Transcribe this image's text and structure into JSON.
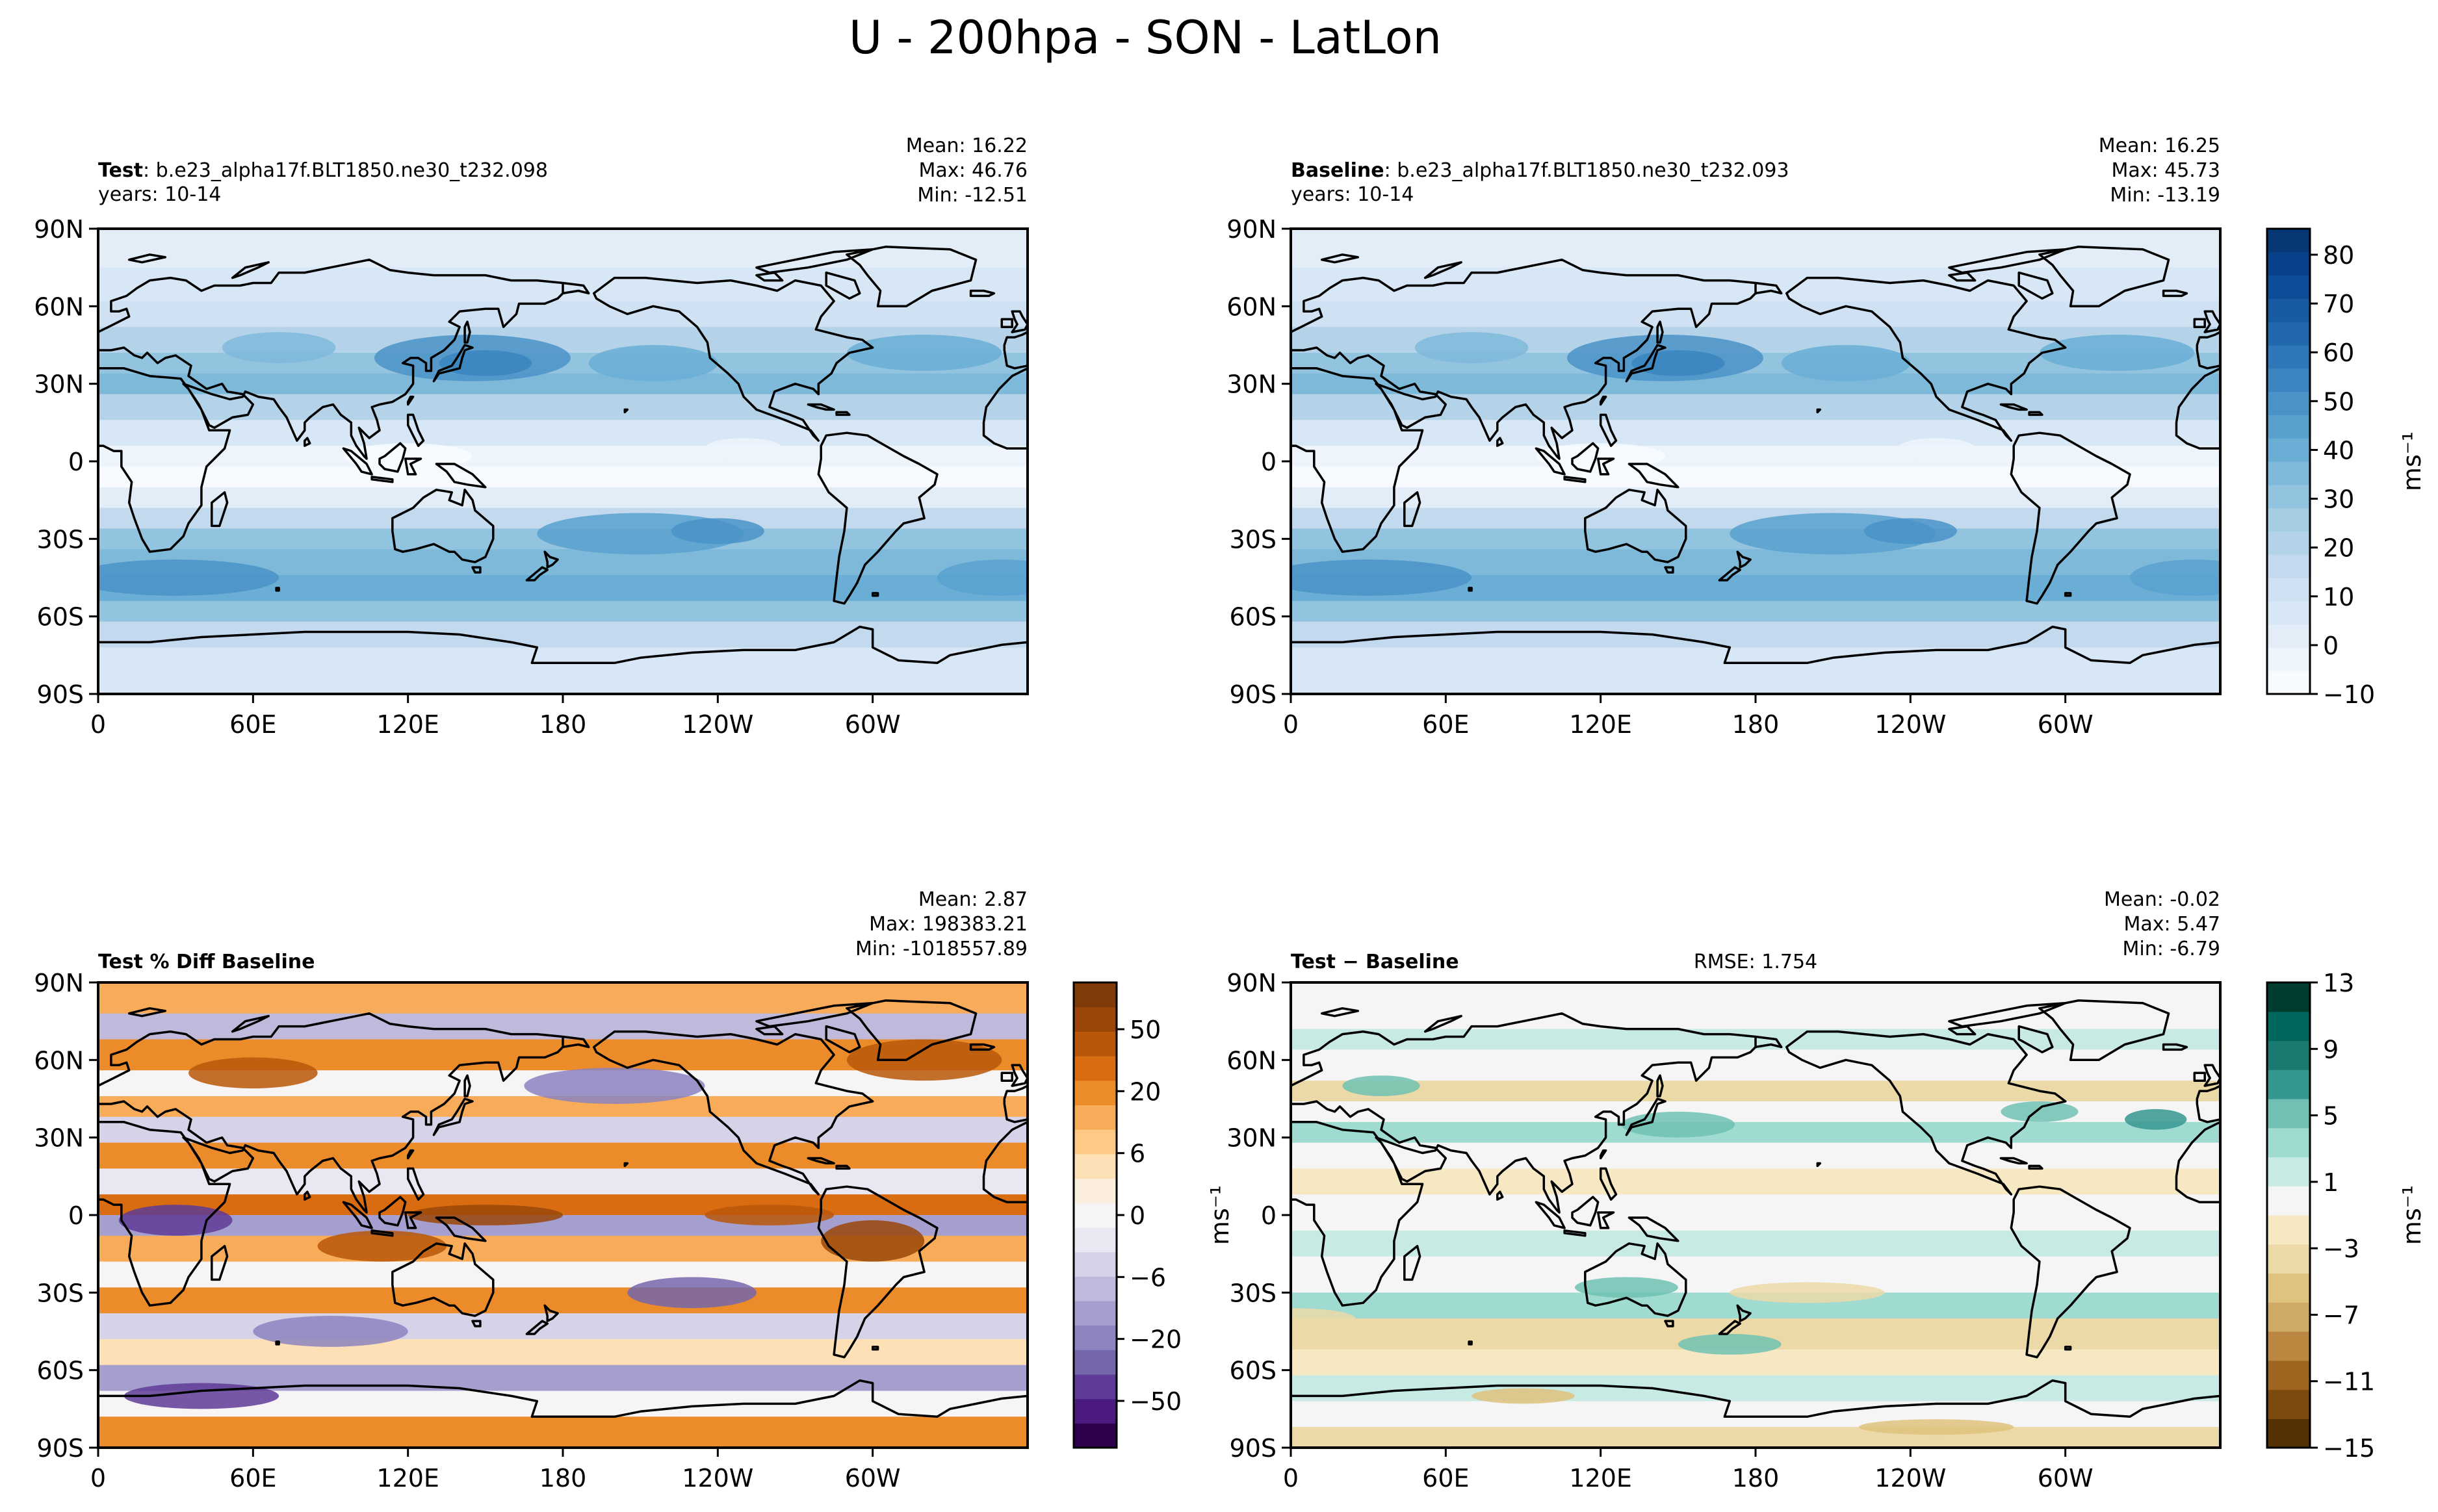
{
  "figure": {
    "title": "U - 200hpa - SON - LatLon"
  },
  "axes_ticks": {
    "lat": [
      "90N",
      "60N",
      "30N",
      "0",
      "30S",
      "60S",
      "90S"
    ],
    "lon": [
      "0",
      "60E",
      "120E",
      "180",
      "120W",
      "60W"
    ]
  },
  "panels": [
    {
      "id": "test",
      "title_bold": "Test",
      "title_rest": ": b.e23_alpha17f.BLT1850.ne30_t232.098",
      "years": "years: 10-14",
      "stats": [
        "Mean: 16.22",
        "Max: 46.76",
        "Min: -12.51"
      ],
      "field": "mean"
    },
    {
      "id": "baseline",
      "title_bold": "Baseline",
      "title_rest": ": b.e23_alpha17f.BLT1850.ne30_t232.093",
      "years": "years: 10-14",
      "stats": [
        "Mean: 16.25",
        "Max: 45.73",
        "Min: -13.19"
      ],
      "field": "mean"
    },
    {
      "id": "pctdiff",
      "title_bold": "Test % Diff Baseline",
      "title_rest": "",
      "years": "",
      "stats": [
        "Mean:  2.87",
        "Max: 198383.21",
        "Min: -1018557.89"
      ],
      "field": "pct"
    },
    {
      "id": "diff",
      "title_bold": "Test − Baseline",
      "title_rest": "",
      "years": "",
      "rmse": "RMSE: 1.754",
      "stats": [
        "Mean: -0.02",
        "Max:  5.47",
        "Min: -6.79"
      ],
      "field": "diff"
    }
  ],
  "colorbars": {
    "mean": {
      "ticks": [
        "80",
        "70",
        "60",
        "50",
        "40",
        "30",
        "20",
        "10",
        "0",
        "−10"
      ],
      "label": "ms⁻¹",
      "colors": [
        "#f7fbff",
        "#edf4fb",
        "#e2edf8",
        "#d8e7f5",
        "#cfe1f2",
        "#c2d9ee",
        "#b4d3e9",
        "#a5cde3",
        "#93c4df",
        "#7fb9da",
        "#6aaed6",
        "#58a1cf",
        "#4a93c8",
        "#3b85c0",
        "#2e77b8",
        "#2268ad",
        "#175ba3",
        "#0d4d98",
        "#08418a",
        "#083776"
      ]
    },
    "pct": {
      "ticks": [
        "50",
        "20",
        "6",
        "0",
        "−6",
        "−20",
        "−50"
      ],
      "colors": [
        "#2d004b",
        "#4a1a7e",
        "#5e3b96",
        "#7666ac",
        "#8c83bf",
        "#a59fcf",
        "#bfbadc",
        "#d6d3e9",
        "#e9e7f2",
        "#f6f4f5",
        "#fbeedc",
        "#fde0b5",
        "#fdc985",
        "#f8ab58",
        "#ec8b2a",
        "#d96c10",
        "#b85708",
        "#9a4608",
        "#7f3b08"
      ]
    },
    "diff": {
      "ticks": [
        "13",
        "9",
        "5",
        "1",
        "−3",
        "−7",
        "−11",
        "−15"
      ],
      "label": "ms⁻¹",
      "colors": [
        "#543005",
        "#7c4a0e",
        "#9f6420",
        "#ba8640",
        "#cfaa65",
        "#dfc27d",
        "#ecd9a8",
        "#f6e8c3",
        "#f5f5f5",
        "#c7eae5",
        "#a0dbd1",
        "#70c1b3",
        "#35978f",
        "#1b7a70",
        "#01665e",
        "#003c30"
      ]
    }
  }
}
